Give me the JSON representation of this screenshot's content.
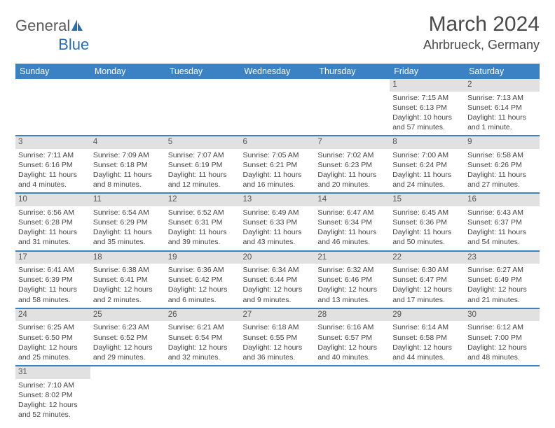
{
  "brand": {
    "name1": "General",
    "name2": "Blue"
  },
  "title": "March 2024",
  "location": "Ahrbrueck, Germany",
  "colors": {
    "header_bg": "#3a82c4",
    "header_text": "#ffffff",
    "daynum_bg": "#e1e1e1",
    "row_divider": "#3a82c4",
    "text_color": "#444444",
    "title_color": "#4a4a4a",
    "brand_gray": "#5b5b5b",
    "brand_blue": "#2a6db3",
    "background": "#ffffff"
  },
  "typography": {
    "month_title_fontsize": 30,
    "location_fontsize": 18,
    "header_cell_fontsize": 12.5,
    "daynum_fontsize": 11.5,
    "body_fontsize": 10.5,
    "logo_fontsize": 22
  },
  "weekdays": [
    "Sunday",
    "Monday",
    "Tuesday",
    "Wednesday",
    "Thursday",
    "Friday",
    "Saturday"
  ],
  "weeks": [
    [
      null,
      null,
      null,
      null,
      null,
      {
        "n": "1",
        "sunrise": "Sunrise: 7:15 AM",
        "sunset": "Sunset: 6:13 PM",
        "daylight": "Daylight: 10 hours and 57 minutes."
      },
      {
        "n": "2",
        "sunrise": "Sunrise: 7:13 AM",
        "sunset": "Sunset: 6:14 PM",
        "daylight": "Daylight: 11 hours and 1 minute."
      }
    ],
    [
      {
        "n": "3",
        "sunrise": "Sunrise: 7:11 AM",
        "sunset": "Sunset: 6:16 PM",
        "daylight": "Daylight: 11 hours and 4 minutes."
      },
      {
        "n": "4",
        "sunrise": "Sunrise: 7:09 AM",
        "sunset": "Sunset: 6:18 PM",
        "daylight": "Daylight: 11 hours and 8 minutes."
      },
      {
        "n": "5",
        "sunrise": "Sunrise: 7:07 AM",
        "sunset": "Sunset: 6:19 PM",
        "daylight": "Daylight: 11 hours and 12 minutes."
      },
      {
        "n": "6",
        "sunrise": "Sunrise: 7:05 AM",
        "sunset": "Sunset: 6:21 PM",
        "daylight": "Daylight: 11 hours and 16 minutes."
      },
      {
        "n": "7",
        "sunrise": "Sunrise: 7:02 AM",
        "sunset": "Sunset: 6:23 PM",
        "daylight": "Daylight: 11 hours and 20 minutes."
      },
      {
        "n": "8",
        "sunrise": "Sunrise: 7:00 AM",
        "sunset": "Sunset: 6:24 PM",
        "daylight": "Daylight: 11 hours and 24 minutes."
      },
      {
        "n": "9",
        "sunrise": "Sunrise: 6:58 AM",
        "sunset": "Sunset: 6:26 PM",
        "daylight": "Daylight: 11 hours and 27 minutes."
      }
    ],
    [
      {
        "n": "10",
        "sunrise": "Sunrise: 6:56 AM",
        "sunset": "Sunset: 6:28 PM",
        "daylight": "Daylight: 11 hours and 31 minutes."
      },
      {
        "n": "11",
        "sunrise": "Sunrise: 6:54 AM",
        "sunset": "Sunset: 6:29 PM",
        "daylight": "Daylight: 11 hours and 35 minutes."
      },
      {
        "n": "12",
        "sunrise": "Sunrise: 6:52 AM",
        "sunset": "Sunset: 6:31 PM",
        "daylight": "Daylight: 11 hours and 39 minutes."
      },
      {
        "n": "13",
        "sunrise": "Sunrise: 6:49 AM",
        "sunset": "Sunset: 6:33 PM",
        "daylight": "Daylight: 11 hours and 43 minutes."
      },
      {
        "n": "14",
        "sunrise": "Sunrise: 6:47 AM",
        "sunset": "Sunset: 6:34 PM",
        "daylight": "Daylight: 11 hours and 46 minutes."
      },
      {
        "n": "15",
        "sunrise": "Sunrise: 6:45 AM",
        "sunset": "Sunset: 6:36 PM",
        "daylight": "Daylight: 11 hours and 50 minutes."
      },
      {
        "n": "16",
        "sunrise": "Sunrise: 6:43 AM",
        "sunset": "Sunset: 6:37 PM",
        "daylight": "Daylight: 11 hours and 54 minutes."
      }
    ],
    [
      {
        "n": "17",
        "sunrise": "Sunrise: 6:41 AM",
        "sunset": "Sunset: 6:39 PM",
        "daylight": "Daylight: 11 hours and 58 minutes."
      },
      {
        "n": "18",
        "sunrise": "Sunrise: 6:38 AM",
        "sunset": "Sunset: 6:41 PM",
        "daylight": "Daylight: 12 hours and 2 minutes."
      },
      {
        "n": "19",
        "sunrise": "Sunrise: 6:36 AM",
        "sunset": "Sunset: 6:42 PM",
        "daylight": "Daylight: 12 hours and 6 minutes."
      },
      {
        "n": "20",
        "sunrise": "Sunrise: 6:34 AM",
        "sunset": "Sunset: 6:44 PM",
        "daylight": "Daylight: 12 hours and 9 minutes."
      },
      {
        "n": "21",
        "sunrise": "Sunrise: 6:32 AM",
        "sunset": "Sunset: 6:46 PM",
        "daylight": "Daylight: 12 hours and 13 minutes."
      },
      {
        "n": "22",
        "sunrise": "Sunrise: 6:30 AM",
        "sunset": "Sunset: 6:47 PM",
        "daylight": "Daylight: 12 hours and 17 minutes."
      },
      {
        "n": "23",
        "sunrise": "Sunrise: 6:27 AM",
        "sunset": "Sunset: 6:49 PM",
        "daylight": "Daylight: 12 hours and 21 minutes."
      }
    ],
    [
      {
        "n": "24",
        "sunrise": "Sunrise: 6:25 AM",
        "sunset": "Sunset: 6:50 PM",
        "daylight": "Daylight: 12 hours and 25 minutes."
      },
      {
        "n": "25",
        "sunrise": "Sunrise: 6:23 AM",
        "sunset": "Sunset: 6:52 PM",
        "daylight": "Daylight: 12 hours and 29 minutes."
      },
      {
        "n": "26",
        "sunrise": "Sunrise: 6:21 AM",
        "sunset": "Sunset: 6:54 PM",
        "daylight": "Daylight: 12 hours and 32 minutes."
      },
      {
        "n": "27",
        "sunrise": "Sunrise: 6:18 AM",
        "sunset": "Sunset: 6:55 PM",
        "daylight": "Daylight: 12 hours and 36 minutes."
      },
      {
        "n": "28",
        "sunrise": "Sunrise: 6:16 AM",
        "sunset": "Sunset: 6:57 PM",
        "daylight": "Daylight: 12 hours and 40 minutes."
      },
      {
        "n": "29",
        "sunrise": "Sunrise: 6:14 AM",
        "sunset": "Sunset: 6:58 PM",
        "daylight": "Daylight: 12 hours and 44 minutes."
      },
      {
        "n": "30",
        "sunrise": "Sunrise: 6:12 AM",
        "sunset": "Sunset: 7:00 PM",
        "daylight": "Daylight: 12 hours and 48 minutes."
      }
    ],
    [
      {
        "n": "31",
        "sunrise": "Sunrise: 7:10 AM",
        "sunset": "Sunset: 8:02 PM",
        "daylight": "Daylight: 12 hours and 52 minutes."
      },
      null,
      null,
      null,
      null,
      null,
      null
    ]
  ]
}
